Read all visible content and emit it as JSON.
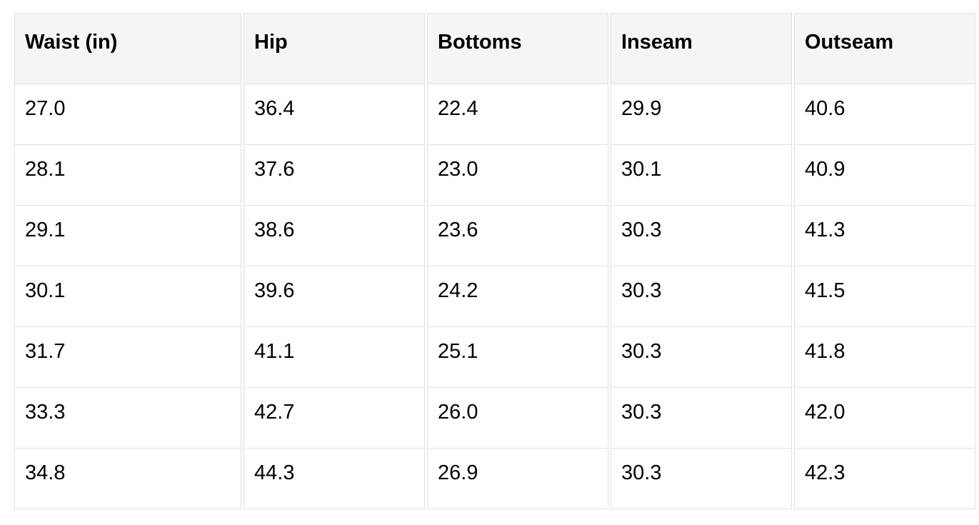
{
  "chart_data": {
    "type": "table",
    "columns": [
      "Waist (in)",
      "Hip",
      "Bottoms",
      "Inseam",
      "Outseam"
    ],
    "rows": [
      [
        "27.0",
        "36.4",
        "22.4",
        "29.9",
        "40.6"
      ],
      [
        "28.1",
        "37.6",
        "23.0",
        "30.1",
        "40.9"
      ],
      [
        "29.1",
        "38.6",
        "23.6",
        "30.3",
        "41.3"
      ],
      [
        "30.1",
        "39.6",
        "24.2",
        "30.3",
        "41.5"
      ],
      [
        "31.7",
        "41.1",
        "25.1",
        "30.3",
        "41.8"
      ],
      [
        "33.3",
        "42.7",
        "26.0",
        "30.3",
        "42.0"
      ],
      [
        "34.8",
        "44.3",
        "26.9",
        "30.3",
        "42.3"
      ]
    ]
  },
  "colors": {
    "header_bg": "#f5f5f5",
    "border": "#e0e0e0",
    "text": "#000000",
    "page_bg": "#ffffff"
  }
}
